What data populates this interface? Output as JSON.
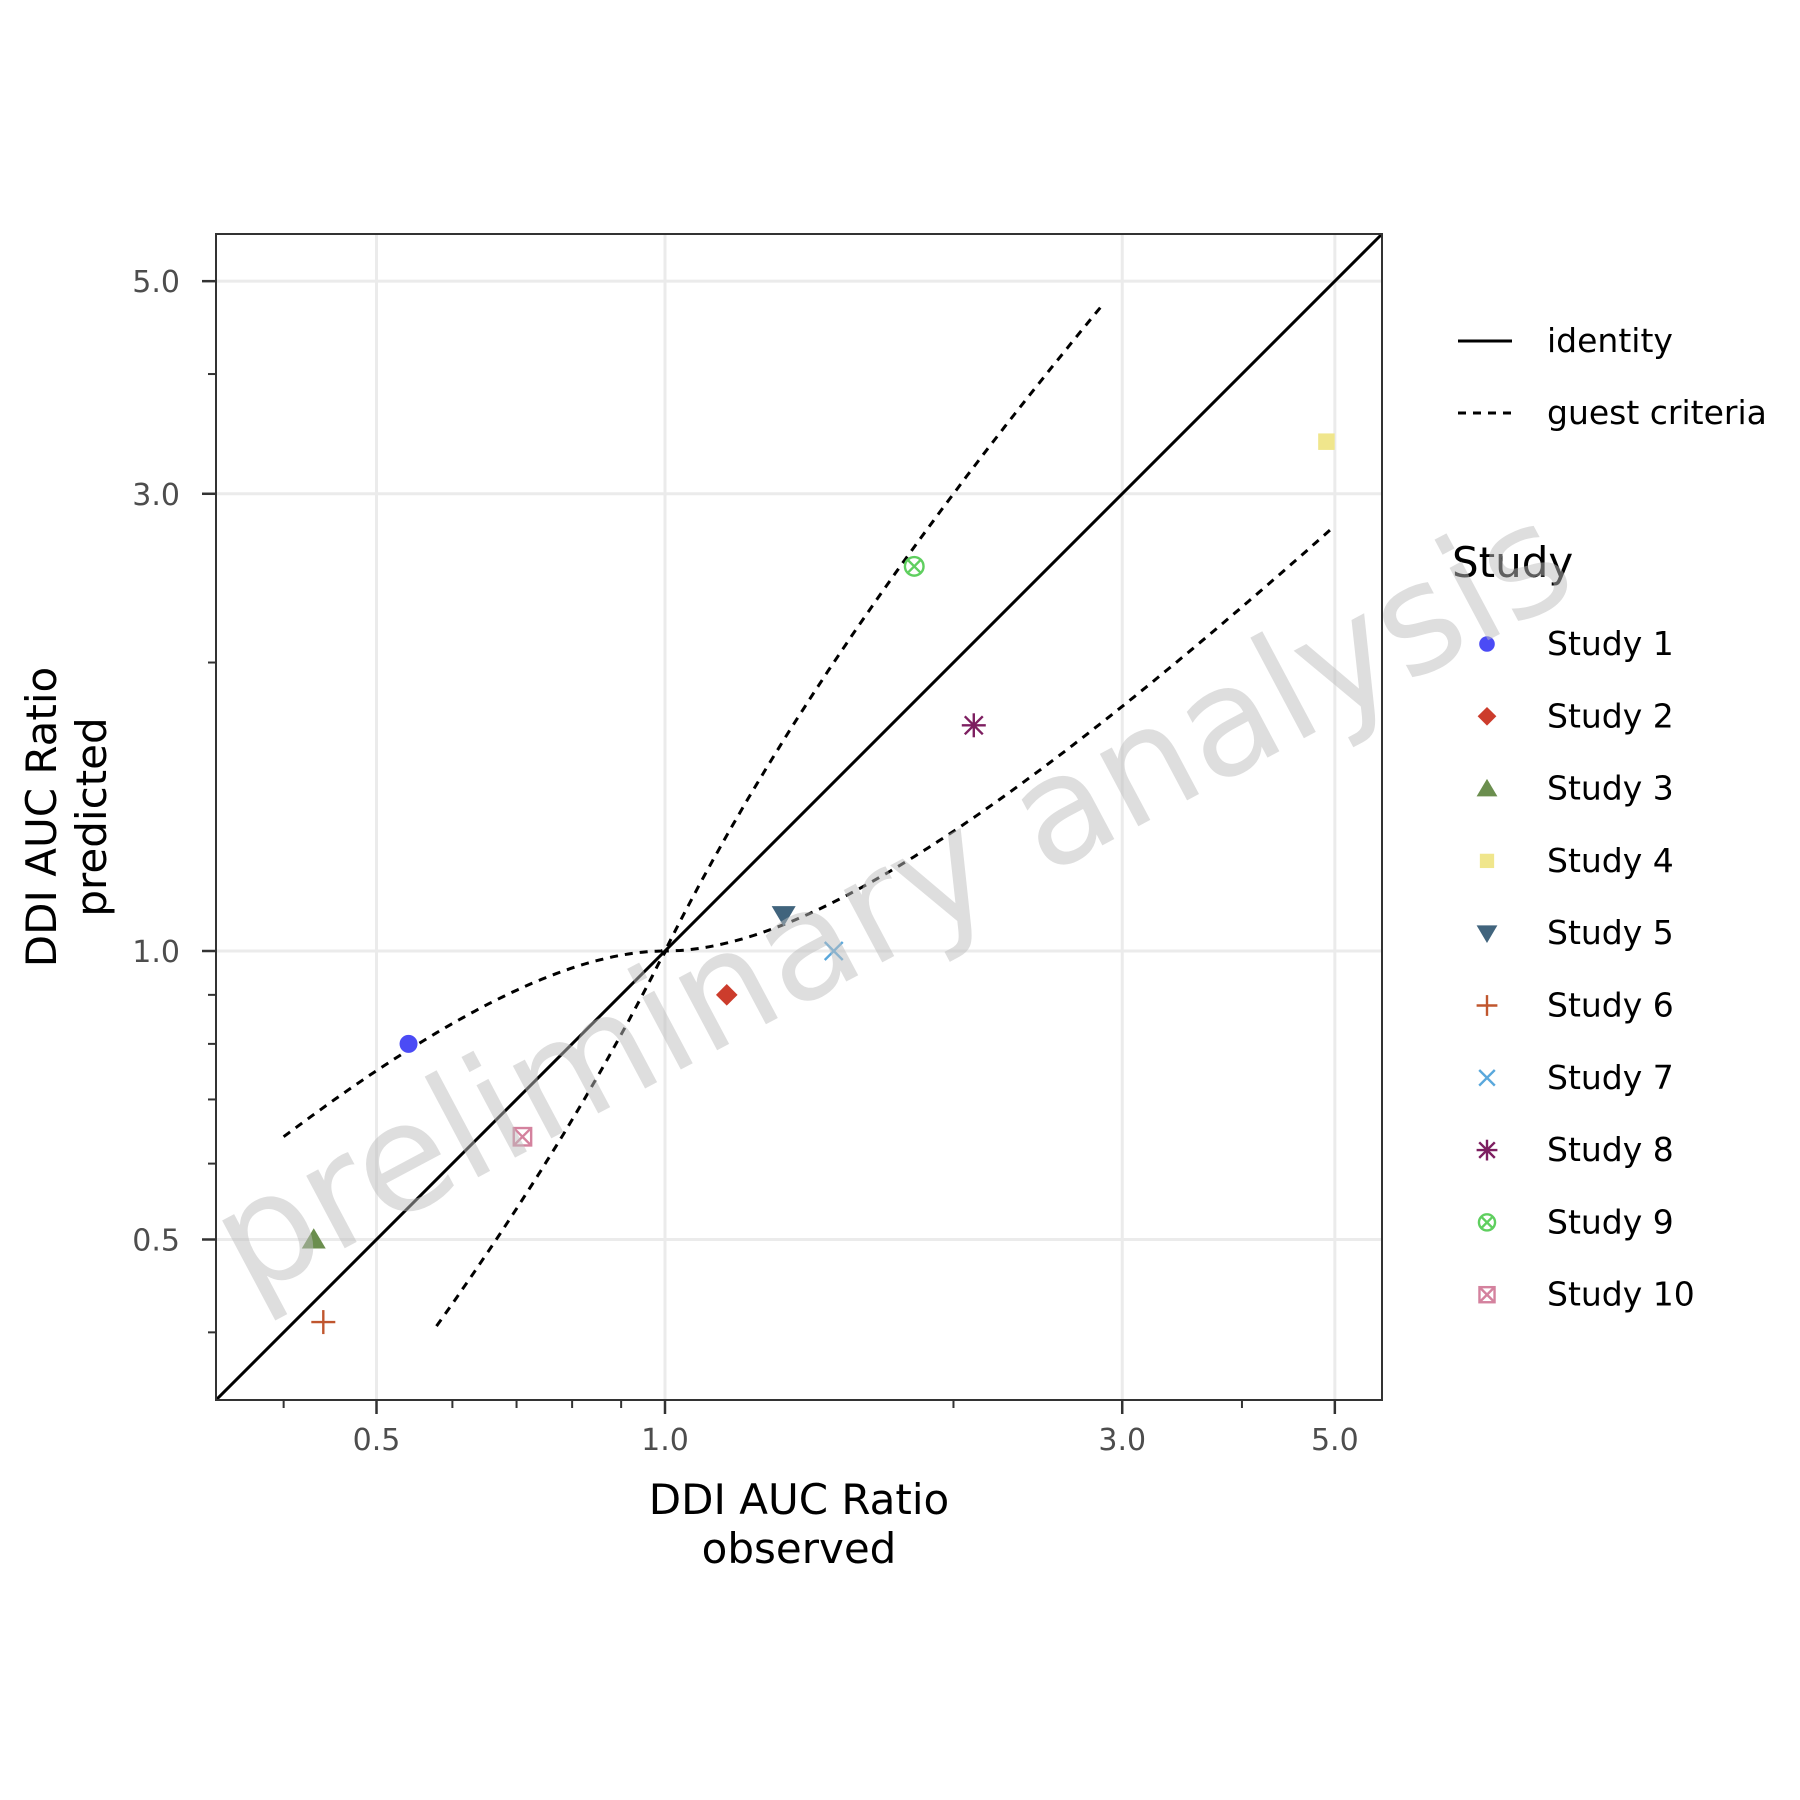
{
  "chart_data": {
    "type": "scatter",
    "scale": "log10",
    "xlabel": [
      "DDI AUC Ratio",
      "observed"
    ],
    "ylabel": [
      "DDI AUC Ratio",
      "predicted"
    ],
    "xlim": [
      0.34,
      5.6
    ],
    "ylim": [
      0.34,
      5.6
    ],
    "x_ticks": [
      0.5,
      1.0,
      3.0,
      5.0
    ],
    "x_tick_labels": [
      "0.5",
      "1.0",
      "3.0",
      "5.0"
    ],
    "y_ticks": [
      0.5,
      1.0,
      3.0,
      5.0
    ],
    "y_tick_labels": [
      "0.5",
      "1.0",
      "3.0",
      "5.0"
    ],
    "minor_ticks": [
      0.4,
      0.6,
      0.7,
      0.8,
      0.9,
      2.0,
      4.0
    ],
    "grid": true,
    "watermark": "preliminary analysis",
    "reference_lines": [
      {
        "name": "identity",
        "style": "solid"
      },
      {
        "name": "guest criteria",
        "style": "dashed"
      }
    ],
    "legend_title": "Study",
    "legend_position": "right",
    "series": [
      {
        "name": "Study 1",
        "x": 0.54,
        "y": 0.8,
        "shape": "circle",
        "color": "#4b4bf5"
      },
      {
        "name": "Study 2",
        "x": 1.16,
        "y": 0.9,
        "shape": "diamond",
        "color": "#cc3c2c"
      },
      {
        "name": "Study 3",
        "x": 0.43,
        "y": 0.5,
        "shape": "triangle-up",
        "color": "#6b8e4e"
      },
      {
        "name": "Study 4",
        "x": 4.9,
        "y": 3.4,
        "shape": "square",
        "color": "#f0e68c"
      },
      {
        "name": "Study 5",
        "x": 1.33,
        "y": 1.09,
        "shape": "triangle-down",
        "color": "#41647d"
      },
      {
        "name": "Study 6",
        "x": 0.44,
        "y": 0.41,
        "shape": "plus",
        "color": "#c0562e"
      },
      {
        "name": "Study 7",
        "x": 1.5,
        "y": 1.0,
        "shape": "cross",
        "color": "#5aa8dc"
      },
      {
        "name": "Study 8",
        "x": 2.1,
        "y": 1.72,
        "shape": "asterisk",
        "color": "#7d1e60"
      },
      {
        "name": "Study 9",
        "x": 1.82,
        "y": 2.52,
        "shape": "circle-cross",
        "color": "#5fcf5f"
      },
      {
        "name": "Study 10",
        "x": 0.71,
        "y": 0.64,
        "shape": "square-cross",
        "color": "#d4829e"
      }
    ]
  }
}
